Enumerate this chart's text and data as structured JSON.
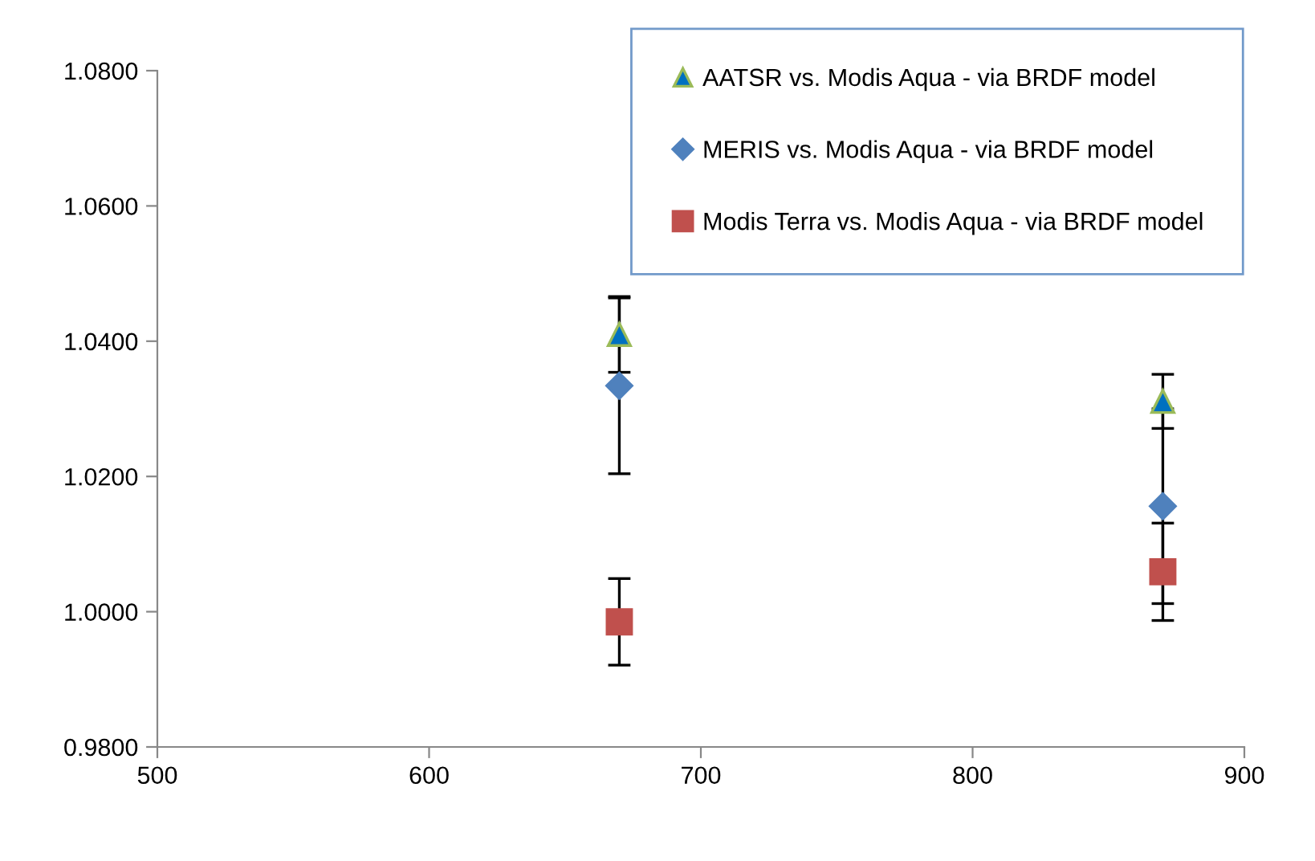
{
  "chart_data": {
    "type": "scatter",
    "x": [
      670,
      870
    ],
    "series": [
      {
        "name": "AATSR vs. Modis Aqua - via BRDF model",
        "color": "#0070c0",
        "marker": "triangle",
        "values": [
          1.041,
          1.0311
        ],
        "errors": [
          0.0056,
          0.004
        ]
      },
      {
        "name": "MERIS vs. Modis Aqua - via BRDF model",
        "color": "#4f81bd",
        "marker": "diamond",
        "values": [
          1.0334,
          1.0156
        ],
        "errors": [
          0.013,
          0.0144
        ]
      },
      {
        "name": "Modis Terra vs. Modis Aqua - via BRDF model",
        "color": "#c0504d",
        "marker": "square",
        "values": [
          0.9985,
          1.0059
        ],
        "errors": [
          0.0064,
          0.0072
        ]
      }
    ],
    "xlim": [
      500,
      900
    ],
    "xticks": [
      500,
      600,
      700,
      800,
      900
    ],
    "ylim": [
      0.98,
      1.08
    ],
    "yticks": [
      {
        "value": 0.98,
        "label": "0.9800"
      },
      {
        "value": 1.0,
        "label": "1.0000"
      },
      {
        "value": 1.02,
        "label": "1.0200"
      },
      {
        "value": 1.04,
        "label": "1.0400"
      },
      {
        "value": 1.06,
        "label": "1.0600"
      },
      {
        "value": 1.08,
        "label": "1.0800"
      }
    ],
    "grid": false,
    "legend": "top right"
  }
}
